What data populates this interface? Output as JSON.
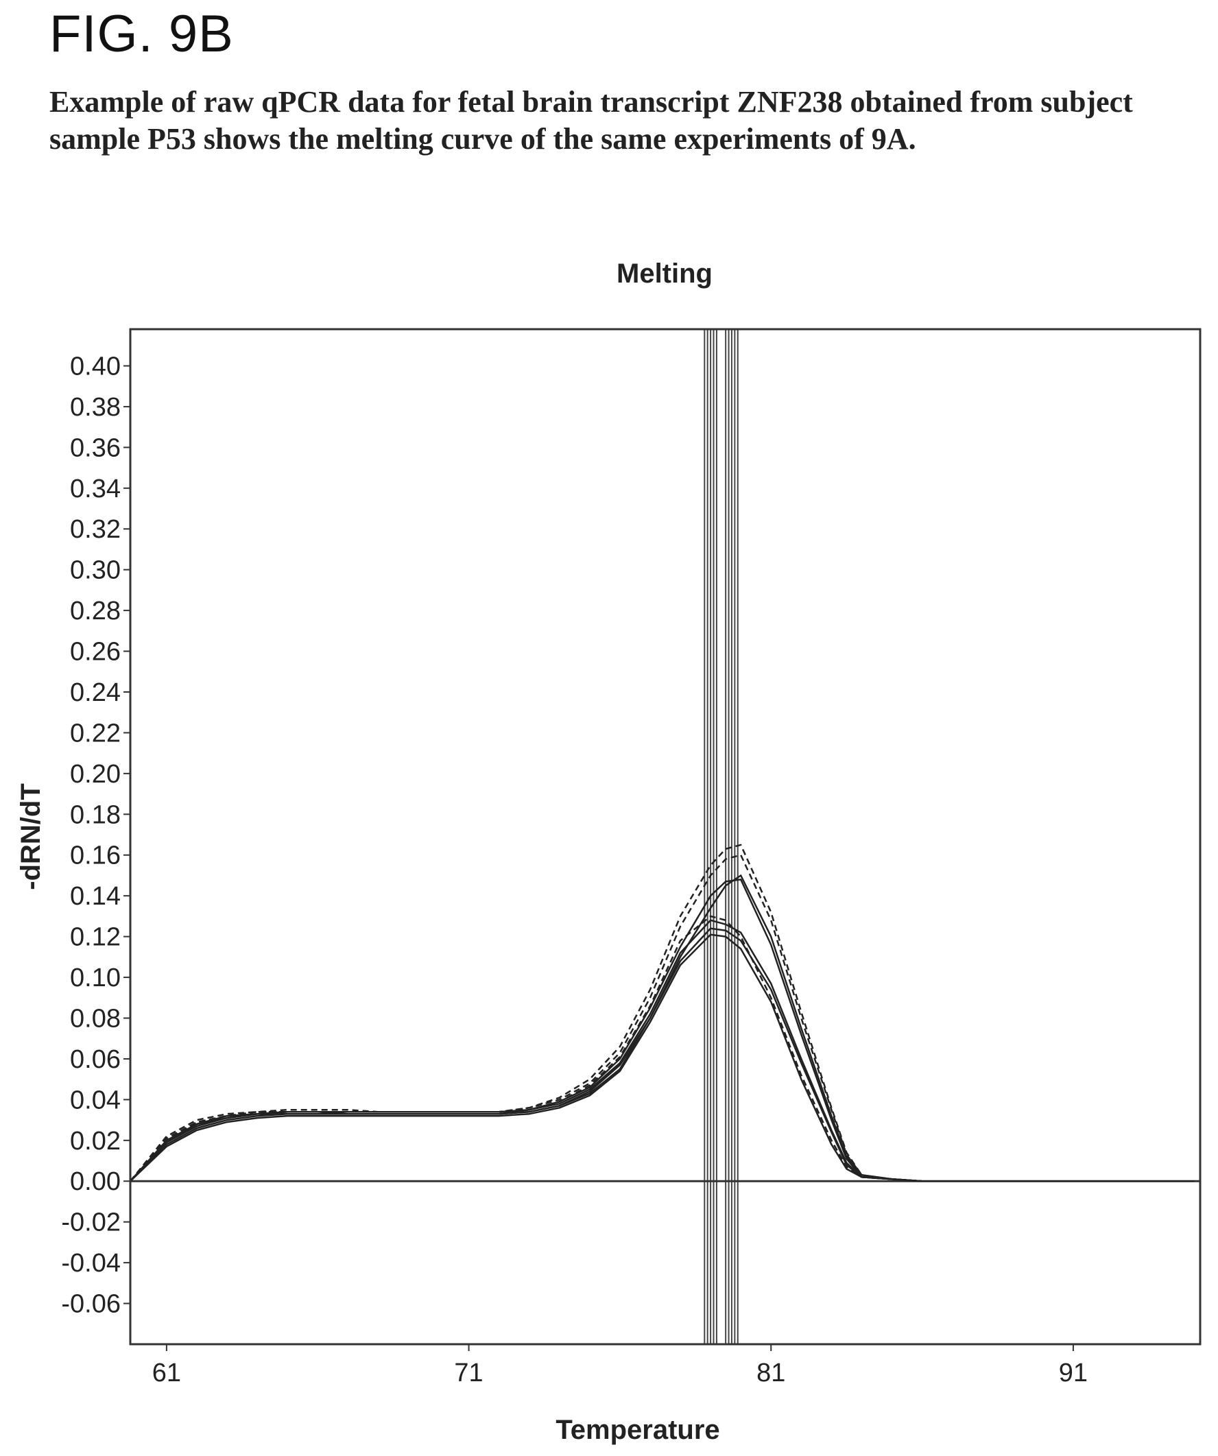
{
  "figure": {
    "label": "FIG. 9B",
    "caption": "Example of raw qPCR data for fetal brain transcript ZNF238 obtained from subject sample P53 shows the melting curve of the same experiments of 9A."
  },
  "chart_data": {
    "type": "line",
    "title": "Melting",
    "xlabel": "Temperature",
    "ylabel": "-dRN/dT",
    "xlim": [
      59.8,
      95.2
    ],
    "ylim": [
      -0.08,
      0.418
    ],
    "xticks": [
      61,
      71,
      81,
      91
    ],
    "yticks": [
      0.4,
      0.38,
      0.36,
      0.34,
      0.32,
      0.3,
      0.28,
      0.26,
      0.24,
      0.22,
      0.2,
      0.18,
      0.16,
      0.14,
      0.12,
      0.1,
      0.08,
      0.06,
      0.04,
      0.02,
      0.0,
      -0.02,
      -0.04,
      -0.06
    ],
    "ytick_labels": [
      "0.40",
      "0.38",
      "0.36",
      "0.34",
      "0.32",
      "0.30",
      "0.28",
      "0.26",
      "0.24",
      "0.22",
      "0.20",
      "0.18",
      "0.16",
      "0.14",
      "0.12",
      "0.10",
      "0.08",
      "0.06",
      "0.04",
      "0.02",
      "0.00",
      "-0.02",
      "-0.04",
      "-0.06"
    ],
    "zero_line": 0.0,
    "vertical_markers": [
      78.8,
      78.9,
      79.0,
      79.1,
      79.2,
      79.5,
      79.6,
      79.7,
      79.8,
      79.9
    ],
    "grid": false,
    "legend": "none",
    "series": [
      {
        "style": "solid",
        "x": [
          59.8,
          61,
          62,
          63,
          64,
          65,
          66,
          67,
          68,
          69,
          70,
          71,
          72,
          73,
          74,
          75,
          76,
          77,
          78,
          79,
          79.5,
          80,
          81,
          82,
          83,
          83.5,
          84,
          85,
          86,
          87,
          88,
          89,
          90,
          91,
          92,
          93,
          94,
          95
        ],
        "y": [
          0.0,
          0.018,
          0.026,
          0.03,
          0.032,
          0.033,
          0.033,
          0.033,
          0.033,
          0.033,
          0.033,
          0.033,
          0.033,
          0.034,
          0.037,
          0.043,
          0.055,
          0.08,
          0.11,
          0.134,
          0.145,
          0.15,
          0.12,
          0.075,
          0.032,
          0.012,
          0.003,
          0.001,
          0.0,
          0.0,
          0.0,
          0.0,
          0.0,
          0.0,
          0.0,
          0.0,
          0.0,
          0.0
        ]
      },
      {
        "style": "solid",
        "x": [
          59.8,
          61,
          62,
          63,
          64,
          65,
          66,
          67,
          68,
          69,
          70,
          71,
          72,
          73,
          74,
          75,
          76,
          77,
          78,
          79,
          79.5,
          80,
          81,
          82,
          83,
          83.5,
          84,
          85,
          86,
          87,
          88,
          89,
          90,
          91,
          92,
          93,
          94,
          95
        ],
        "y": [
          0.0,
          0.02,
          0.028,
          0.031,
          0.033,
          0.034,
          0.034,
          0.034,
          0.034,
          0.034,
          0.034,
          0.034,
          0.034,
          0.035,
          0.038,
          0.045,
          0.058,
          0.082,
          0.112,
          0.128,
          0.126,
          0.122,
          0.097,
          0.06,
          0.025,
          0.009,
          0.002,
          0.001,
          0.0,
          0.0,
          0.0,
          0.0,
          0.0,
          0.0,
          0.0,
          0.0,
          0.0,
          0.0
        ]
      },
      {
        "style": "solid",
        "x": [
          59.8,
          61,
          62,
          63,
          64,
          65,
          66,
          67,
          68,
          69,
          70,
          71,
          72,
          73,
          74,
          75,
          76,
          77,
          78,
          79,
          79.5,
          80,
          81,
          82,
          83,
          83.5,
          84,
          85,
          86,
          87,
          88,
          89,
          90,
          91,
          92,
          93,
          94,
          95
        ],
        "y": [
          0.0,
          0.019,
          0.027,
          0.031,
          0.033,
          0.033,
          0.033,
          0.033,
          0.033,
          0.033,
          0.033,
          0.033,
          0.033,
          0.034,
          0.037,
          0.044,
          0.057,
          0.08,
          0.108,
          0.124,
          0.123,
          0.118,
          0.094,
          0.058,
          0.024,
          0.008,
          0.002,
          0.001,
          0.0,
          0.0,
          0.0,
          0.0,
          0.0,
          0.0,
          0.0,
          0.0,
          0.0,
          0.0
        ]
      },
      {
        "style": "dashed",
        "x": [
          59.8,
          61,
          62,
          63,
          64,
          65,
          66,
          67,
          68,
          69,
          70,
          71,
          72,
          73,
          74,
          75,
          76,
          77,
          78,
          79,
          79.5,
          80,
          81,
          82,
          83,
          83.5,
          84,
          85,
          86,
          87,
          88,
          89,
          90,
          91,
          92,
          93,
          94,
          95
        ],
        "y": [
          0.0,
          0.022,
          0.03,
          0.033,
          0.034,
          0.034,
          0.034,
          0.034,
          0.034,
          0.034,
          0.034,
          0.034,
          0.034,
          0.036,
          0.04,
          0.048,
          0.063,
          0.09,
          0.125,
          0.15,
          0.158,
          0.16,
          0.128,
          0.08,
          0.035,
          0.013,
          0.003,
          0.001,
          0.0,
          0.0,
          0.0,
          0.0,
          0.0,
          0.0,
          0.0,
          0.0,
          0.0,
          0.0
        ]
      },
      {
        "style": "dashed",
        "x": [
          59.8,
          61,
          62,
          63,
          64,
          65,
          66,
          67,
          68,
          69,
          70,
          71,
          72,
          73,
          74,
          75,
          76,
          77,
          78,
          79,
          79.5,
          80,
          81,
          82,
          83,
          83.5,
          84,
          85,
          86,
          87,
          88,
          89,
          90,
          91,
          92,
          93,
          94,
          95
        ],
        "y": [
          0.0,
          0.02,
          0.029,
          0.032,
          0.034,
          0.034,
          0.034,
          0.034,
          0.034,
          0.034,
          0.034,
          0.034,
          0.034,
          0.035,
          0.039,
          0.047,
          0.061,
          0.086,
          0.118,
          0.13,
          0.128,
          0.12,
          0.09,
          0.052,
          0.02,
          0.007,
          0.002,
          0.001,
          0.0,
          0.0,
          0.0,
          0.0,
          0.0,
          0.0,
          0.0,
          0.0,
          0.0,
          0.0
        ]
      },
      {
        "style": "solid",
        "x": [
          59.8,
          61,
          62,
          63,
          64,
          65,
          66,
          67,
          68,
          69,
          70,
          71,
          72,
          73,
          74,
          75,
          76,
          77,
          78,
          79,
          79.5,
          80,
          81,
          82,
          83,
          83.5,
          84,
          85,
          86,
          87,
          88,
          89,
          90,
          91,
          92,
          93,
          94,
          95
        ],
        "y": [
          0.0,
          0.017,
          0.025,
          0.029,
          0.031,
          0.032,
          0.032,
          0.032,
          0.032,
          0.032,
          0.032,
          0.032,
          0.032,
          0.033,
          0.036,
          0.042,
          0.054,
          0.078,
          0.106,
          0.121,
          0.12,
          0.114,
          0.088,
          0.05,
          0.018,
          0.006,
          0.002,
          0.001,
          0.0,
          0.0,
          0.0,
          0.0,
          0.0,
          0.0,
          0.0,
          0.0,
          0.0,
          0.0
        ]
      },
      {
        "style": "dashed",
        "x": [
          59.8,
          61,
          62,
          63,
          64,
          65,
          66,
          67,
          68,
          69,
          70,
          71,
          72,
          73,
          74,
          75,
          76,
          77,
          78,
          79,
          79.5,
          80,
          81,
          82,
          83,
          83.5,
          84,
          85,
          86,
          87,
          88,
          89,
          90,
          91,
          92,
          93,
          94,
          95
        ],
        "y": [
          0.0,
          0.021,
          0.029,
          0.032,
          0.034,
          0.035,
          0.035,
          0.035,
          0.034,
          0.034,
          0.034,
          0.034,
          0.034,
          0.036,
          0.041,
          0.05,
          0.066,
          0.094,
          0.13,
          0.155,
          0.163,
          0.165,
          0.132,
          0.083,
          0.036,
          0.014,
          0.003,
          0.001,
          0.0,
          0.0,
          0.0,
          0.0,
          0.0,
          0.0,
          0.0,
          0.0,
          0.0,
          0.0
        ]
      },
      {
        "style": "solid",
        "x": [
          59.8,
          61,
          62,
          63,
          64,
          65,
          66,
          67,
          68,
          69,
          70,
          71,
          72,
          73,
          74,
          75,
          76,
          77,
          78,
          79,
          79.5,
          80,
          81,
          82,
          83,
          83.5,
          84,
          85,
          86,
          87,
          88,
          89,
          90,
          91,
          92,
          93,
          94,
          95
        ],
        "y": [
          0.0,
          0.019,
          0.028,
          0.032,
          0.033,
          0.034,
          0.034,
          0.033,
          0.033,
          0.033,
          0.033,
          0.033,
          0.033,
          0.035,
          0.039,
          0.046,
          0.06,
          0.085,
          0.115,
          0.14,
          0.147,
          0.148,
          0.116,
          0.072,
          0.03,
          0.011,
          0.002,
          0.001,
          0.0,
          0.0,
          0.0,
          0.0,
          0.0,
          0.0,
          0.0,
          0.0,
          0.0,
          0.0
        ]
      }
    ]
  }
}
